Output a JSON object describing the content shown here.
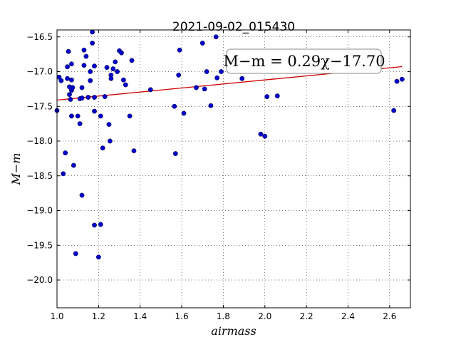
{
  "chart_data": {
    "type": "scatter",
    "title": "2021-09-02_015430",
    "xlabel": "airmass",
    "ylabel": "M−m",
    "xlim": [
      1.0,
      2.7
    ],
    "ylim": [
      -16.4,
      -20.4
    ],
    "y_inverted": true,
    "grid": true,
    "x_ticks": [
      1.0,
      1.2,
      1.4,
      1.6,
      1.8,
      2.0,
      2.2,
      2.4,
      2.6
    ],
    "x_tick_labels": [
      "1.0",
      "1.2",
      "1.4",
      "1.6",
      "1.8",
      "2.0",
      "2.2",
      "2.4",
      "2.6"
    ],
    "y_ticks": [
      -16.5,
      -17.0,
      -17.5,
      -18.0,
      -18.5,
      -19.0,
      -19.5,
      -20.0
    ],
    "y_tick_labels": [
      "−16.5",
      "−17.0",
      "−17.5",
      "−18.0",
      "−18.5",
      "−19.0",
      "−19.5",
      "−20.0"
    ],
    "annotation": "M−m = 0.29χ−17.70",
    "fit_line": {
      "slope": 0.29,
      "intercept": -17.7
    },
    "marker_color": "#0000cc",
    "fit_color": "#cc0000",
    "series": [
      {
        "points": [
          [
            1.0,
            -17.56
          ],
          [
            1.01,
            -17.08
          ],
          [
            1.02,
            -17.13
          ],
          [
            1.03,
            -18.47
          ],
          [
            1.04,
            -18.17
          ],
          [
            1.05,
            -17.1
          ],
          [
            1.05,
            -16.93
          ],
          [
            1.055,
            -16.71
          ],
          [
            1.06,
            -17.33
          ],
          [
            1.06,
            -17.22
          ],
          [
            1.07,
            -17.12
          ],
          [
            1.065,
            -17.4
          ],
          [
            1.07,
            -17.64
          ],
          [
            1.07,
            -16.89
          ],
          [
            1.07,
            -17.27
          ],
          [
            1.075,
            -17.23
          ],
          [
            1.08,
            -18.35
          ],
          [
            1.09,
            -19.62
          ],
          [
            1.1,
            -17.64
          ],
          [
            1.11,
            -17.75
          ],
          [
            1.11,
            -17.39
          ],
          [
            1.12,
            -17.23
          ],
          [
            1.12,
            -17.38
          ],
          [
            1.12,
            -18.78
          ],
          [
            1.13,
            -16.69
          ],
          [
            1.13,
            -16.91
          ],
          [
            1.14,
            -16.78
          ],
          [
            1.15,
            -17.37
          ],
          [
            1.16,
            -17.0
          ],
          [
            1.16,
            -17.13
          ],
          [
            1.17,
            -16.43
          ],
          [
            1.17,
            -16.59
          ],
          [
            1.18,
            -16.92
          ],
          [
            1.18,
            -17.37
          ],
          [
            1.18,
            -17.57
          ],
          [
            1.18,
            -19.21
          ],
          [
            1.2,
            -19.67
          ],
          [
            1.21,
            -19.2
          ],
          [
            1.21,
            -17.64
          ],
          [
            1.22,
            -18.1
          ],
          [
            1.23,
            -17.36
          ],
          [
            1.24,
            -16.94
          ],
          [
            1.25,
            -17.76
          ],
          [
            1.255,
            -18.0
          ],
          [
            1.26,
            -17.05
          ],
          [
            1.26,
            -17.1
          ],
          [
            1.27,
            -16.96
          ],
          [
            1.28,
            -16.86
          ],
          [
            1.29,
            -17.0
          ],
          [
            1.3,
            -16.7
          ],
          [
            1.31,
            -16.73
          ],
          [
            1.32,
            -17.12
          ],
          [
            1.33,
            -17.19
          ],
          [
            1.35,
            -17.64
          ],
          [
            1.36,
            -16.84
          ],
          [
            1.37,
            -18.14
          ],
          [
            1.45,
            -17.26
          ],
          [
            1.565,
            -17.5
          ],
          [
            1.57,
            -18.18
          ],
          [
            1.585,
            -17.05
          ],
          [
            1.59,
            -16.69
          ],
          [
            1.61,
            -17.6
          ],
          [
            1.67,
            -17.23
          ],
          [
            1.7,
            -16.59
          ],
          [
            1.71,
            -17.25
          ],
          [
            1.72,
            -17.0
          ],
          [
            1.74,
            -17.49
          ],
          [
            1.765,
            -16.5
          ],
          [
            1.77,
            -17.09
          ],
          [
            1.79,
            -17.0
          ],
          [
            1.89,
            -17.1
          ],
          [
            1.98,
            -17.9
          ],
          [
            2.0,
            -17.93
          ],
          [
            2.01,
            -17.36
          ],
          [
            2.06,
            -17.35
          ],
          [
            2.62,
            -17.56
          ],
          [
            2.635,
            -17.14
          ],
          [
            2.66,
            -17.11
          ]
        ]
      }
    ]
  }
}
